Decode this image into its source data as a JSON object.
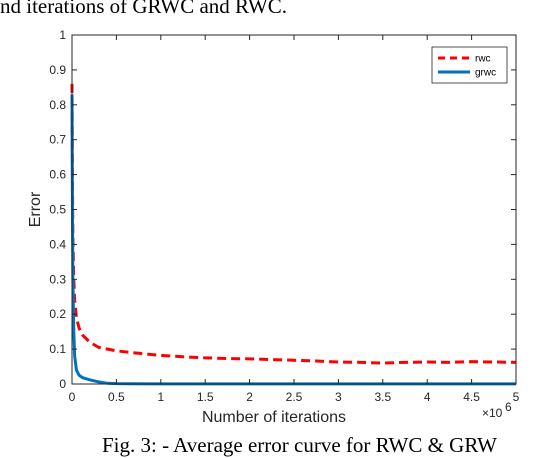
{
  "top_caption": "nd iterations of GRWC and RWC.",
  "figure_caption": "Fig. 3: - Average error curve for RWC & GRW",
  "chart_data": {
    "type": "line",
    "title": "",
    "xlabel": "Number of iterations",
    "ylabel": "Error",
    "x_multiplier_label": "×10",
    "x_multiplier_exponent": "6",
    "xlim": [
      0,
      5
    ],
    "ylim": [
      0,
      1
    ],
    "xticks": [
      "0",
      "0.5",
      "1",
      "1.5",
      "2",
      "2.5",
      "3",
      "3.5",
      "4",
      "4.5",
      "5"
    ],
    "yticks": [
      "0",
      "0.1",
      "0.2",
      "0.3",
      "0.4",
      "0.5",
      "0.6",
      "0.7",
      "0.8",
      "0.9",
      "1"
    ],
    "grid": false,
    "legend_position": "top-right",
    "series": [
      {
        "name": "rwc",
        "color": "#ff0000",
        "style": "dashed",
        "x": [
          0,
          0.005,
          0.01,
          0.02,
          0.03,
          0.05,
          0.08,
          0.12,
          0.2,
          0.3,
          0.4,
          0.5,
          0.75,
          1.0,
          1.25,
          1.5,
          1.75,
          2.0,
          2.25,
          2.5,
          2.75,
          3.0,
          3.25,
          3.5,
          3.75,
          4.0,
          4.25,
          4.5,
          4.75,
          5.0
        ],
        "y": [
          0.86,
          0.6,
          0.42,
          0.3,
          0.24,
          0.19,
          0.16,
          0.14,
          0.12,
          0.105,
          0.1,
          0.095,
          0.088,
          0.082,
          0.078,
          0.075,
          0.073,
          0.072,
          0.07,
          0.068,
          0.066,
          0.063,
          0.062,
          0.06,
          0.062,
          0.063,
          0.062,
          0.064,
          0.063,
          0.062
        ]
      },
      {
        "name": "grwc",
        "color": "#0072bd",
        "style": "solid",
        "x": [
          0,
          0.005,
          0.01,
          0.02,
          0.03,
          0.05,
          0.08,
          0.12,
          0.2,
          0.3,
          0.4,
          0.5,
          1.0,
          2.0,
          3.0,
          4.0,
          5.0
        ],
        "y": [
          0.83,
          0.5,
          0.3,
          0.15,
          0.08,
          0.04,
          0.025,
          0.018,
          0.012,
          0.006,
          0.002,
          0.001,
          0.0005,
          0.0003,
          0.0002,
          0.0002,
          0.0002
        ]
      }
    ]
  }
}
